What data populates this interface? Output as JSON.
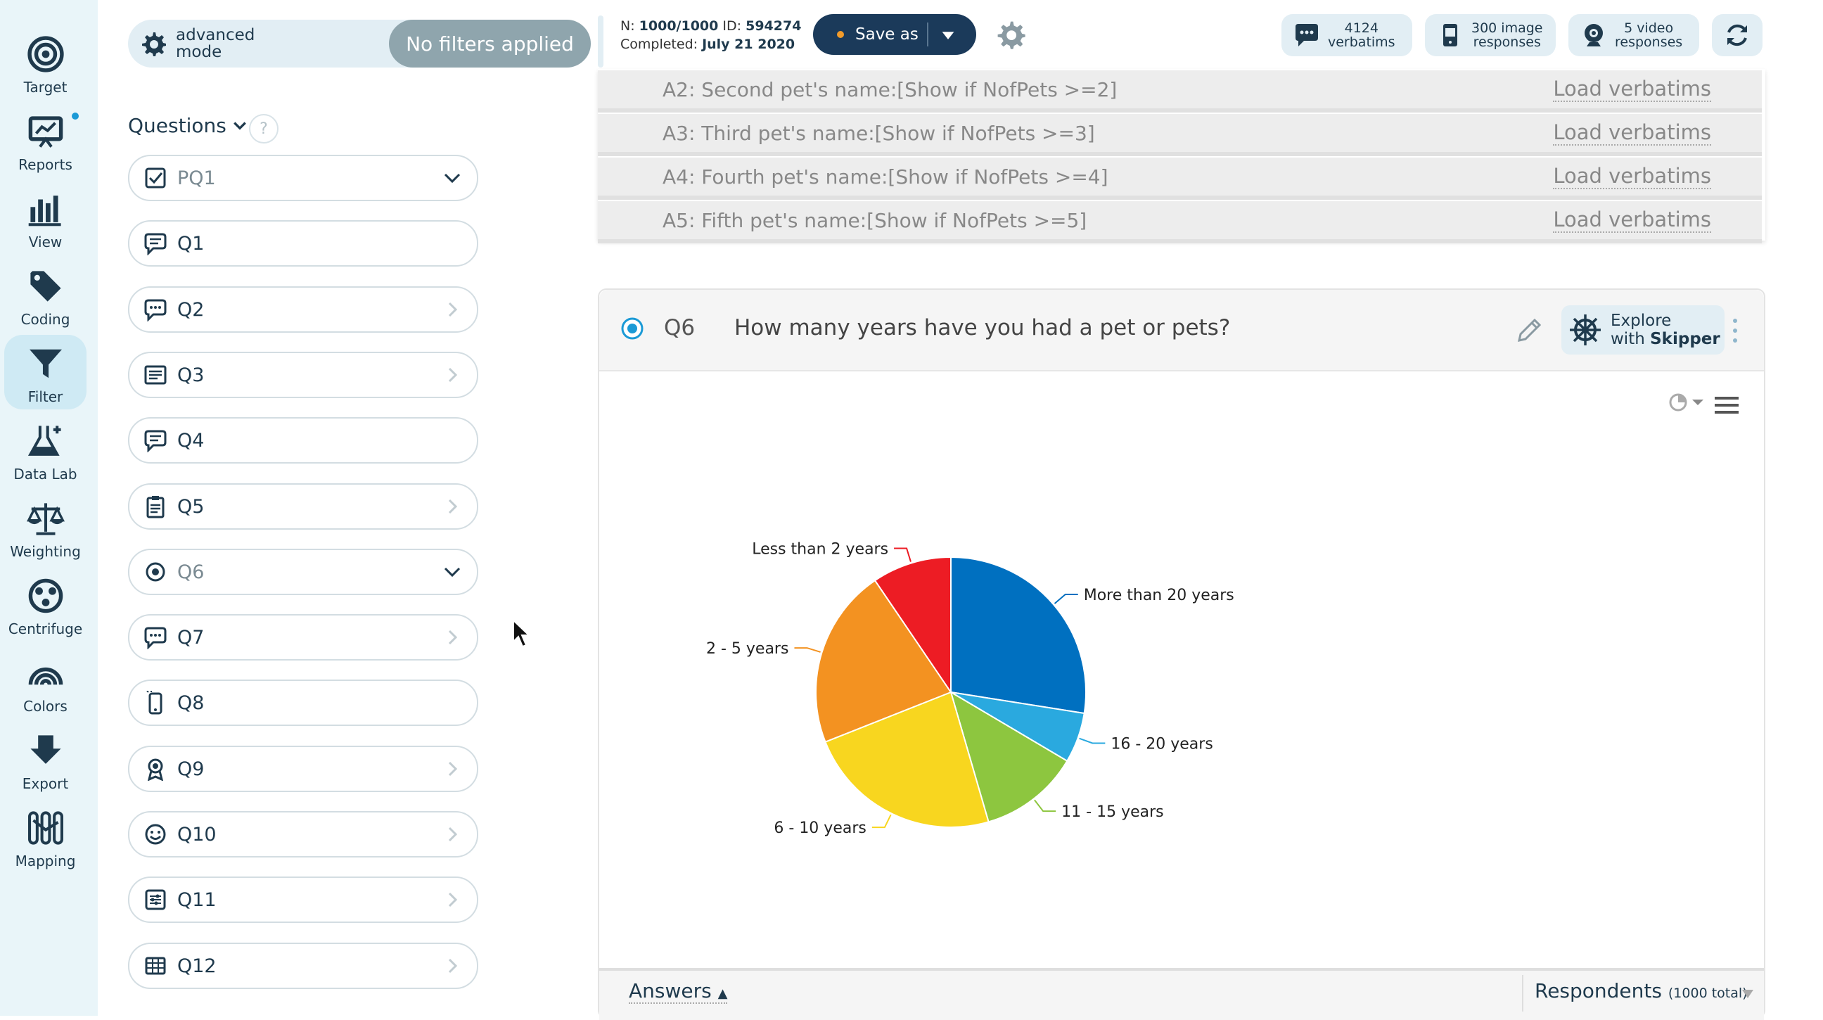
{
  "rail": {
    "items": [
      {
        "label": "Target"
      },
      {
        "label": "Reports"
      },
      {
        "label": "View"
      },
      {
        "label": "Coding"
      },
      {
        "label": "Filter"
      },
      {
        "label": "Data Lab"
      },
      {
        "label": "Weighting"
      },
      {
        "label": "Centrifuge"
      },
      {
        "label": "Colors"
      },
      {
        "label": "Export"
      },
      {
        "label": "Mapping"
      }
    ],
    "active": "Filter"
  },
  "panel": {
    "mode_label": "advanced\nmode",
    "filter_status": "No filters applied",
    "questions_header": "Questions",
    "help": "?",
    "questions": [
      {
        "label": "PQ1",
        "icon": "checkbox-icon",
        "state": "expanded"
      },
      {
        "label": "Q1",
        "icon": "speech-bubble-icon",
        "state": "none"
      },
      {
        "label": "Q2",
        "icon": "chat-bubble-icon",
        "state": "collapsed"
      },
      {
        "label": "Q3",
        "icon": "text-list-icon",
        "state": "collapsed"
      },
      {
        "label": "Q4",
        "icon": "speech-bubble-icon",
        "state": "none"
      },
      {
        "label": "Q5",
        "icon": "clipboard-icon",
        "state": "collapsed"
      },
      {
        "label": "Q6",
        "icon": "radio-icon",
        "state": "expanded"
      },
      {
        "label": "Q7",
        "icon": "chat-bubble-icon",
        "state": "collapsed"
      },
      {
        "label": "Q8",
        "icon": "phone-icon",
        "state": "none"
      },
      {
        "label": "Q9",
        "icon": "award-icon",
        "state": "collapsed"
      },
      {
        "label": "Q10",
        "icon": "smiley-icon",
        "state": "collapsed"
      },
      {
        "label": "Q11",
        "icon": "sliders-icon",
        "state": "collapsed"
      },
      {
        "label": "Q12",
        "icon": "grid-icon",
        "state": "collapsed"
      }
    ]
  },
  "topbar": {
    "n_label": "N:",
    "n_value": "1000/1000",
    "id_label": "ID:",
    "id_value": "594274",
    "completed_label": "Completed:",
    "completed_value": "July 21 2020",
    "save_label": "Save as",
    "verbatims_count": "4124",
    "verbatims_label": "verbatims",
    "images_count": "300 image",
    "images_label": "responses",
    "videos_count": "5 video",
    "videos_label": "responses"
  },
  "verbatims": [
    {
      "text": "A2: Second pet's name:[Show if NofPets >=2]",
      "action": "Load verbatims"
    },
    {
      "text": "A3: Third pet's name:[Show if NofPets >=3]",
      "action": "Load verbatims"
    },
    {
      "text": "A4: Fourth pet's name:[Show if NofPets >=4]",
      "action": "Load verbatims"
    },
    {
      "text": "A5: Fifth pet's name:[Show if NofPets >=5]",
      "action": "Load verbatims"
    }
  ],
  "question": {
    "code": "Q6",
    "title": "How many years have you had a pet or pets?",
    "explore_line1": "Explore",
    "explore_line2_prefix": "with ",
    "explore_line2_bold": "Skipper"
  },
  "chart_data": {
    "type": "pie",
    "title": "",
    "start_angle_deg": 0,
    "slices": [
      {
        "label": "More than 20 years",
        "value": 27.5,
        "color": "#0070c0"
      },
      {
        "label": "16 - 20 years",
        "value": 6.0,
        "color": "#2aa9df"
      },
      {
        "label": "11 - 15 years",
        "value": 12.0,
        "color": "#8dc63f"
      },
      {
        "label": "6 - 10 years",
        "value": 23.5,
        "color": "#f8d61f"
      },
      {
        "label": "2 - 5 years",
        "value": 21.5,
        "color": "#f39221"
      },
      {
        "label": "Less than 2 years",
        "value": 9.5,
        "color": "#ed1c24"
      }
    ]
  },
  "footer": {
    "answers_label": "Answers",
    "respondents_label": "Respondents",
    "respondents_total": "(1000 total)"
  }
}
